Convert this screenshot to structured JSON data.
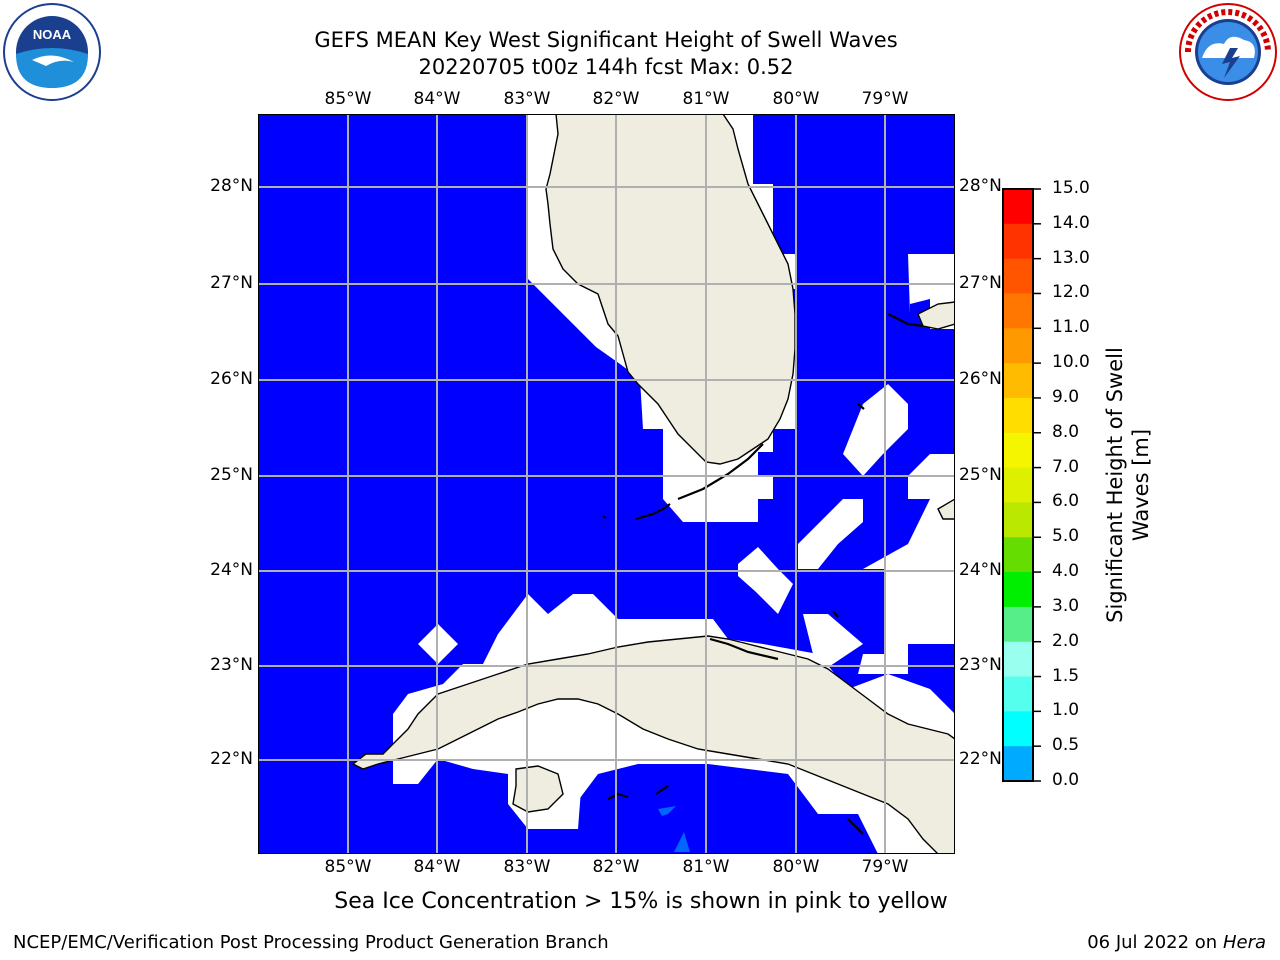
{
  "title": {
    "line1": "GEFS MEAN Key West Significant Height of Swell Waves",
    "line2": "20220705 t00z 144h fcst   Max: 0.52"
  },
  "map": {
    "lon_labels": [
      "85°W",
      "84°W",
      "83°W",
      "82°W",
      "81°W",
      "80°W",
      "79°W"
    ],
    "lat_labels": [
      "28°N",
      "27°N",
      "26°N",
      "25°N",
      "24°N",
      "23°N",
      "22°N"
    ],
    "water_color": "#0000ff",
    "land_color": "#eeeddf",
    "grid_color": "#b0b0b0"
  },
  "colorbar": {
    "title": "Significant Height of Swell Waves [m]",
    "ticks": [
      "15.0",
      "14.0",
      "13.0",
      "12.0",
      "11.0",
      "10.0",
      "9.0",
      "8.0",
      "7.0",
      "6.0",
      "5.0",
      "4.0",
      "3.0",
      "2.0",
      "1.5",
      "1.0",
      "0.5",
      "0.0"
    ],
    "colors": [
      "#ff0000",
      "#ff3300",
      "#ff5500",
      "#ff7700",
      "#ff9900",
      "#ffbb00",
      "#ffdd00",
      "#f5f500",
      "#ddf000",
      "#bbe800",
      "#66dd00",
      "#00ee00",
      "#55ee88",
      "#99ffee",
      "#55ffee",
      "#00ffff",
      "#00aaff",
      "#0066ff",
      "#0000ff"
    ]
  },
  "note": "Sea Ice Concentration > 15% is shown in pink to yellow",
  "footer": {
    "left": "NCEP/EMC/Verification Post Processing Product Generation Branch",
    "right_prefix": "06 Jul 2022 on ",
    "right_host": "Hera"
  },
  "logos": {
    "noaa": "NOAA",
    "nws": "NATIONAL WEATHER SERVICE"
  }
}
